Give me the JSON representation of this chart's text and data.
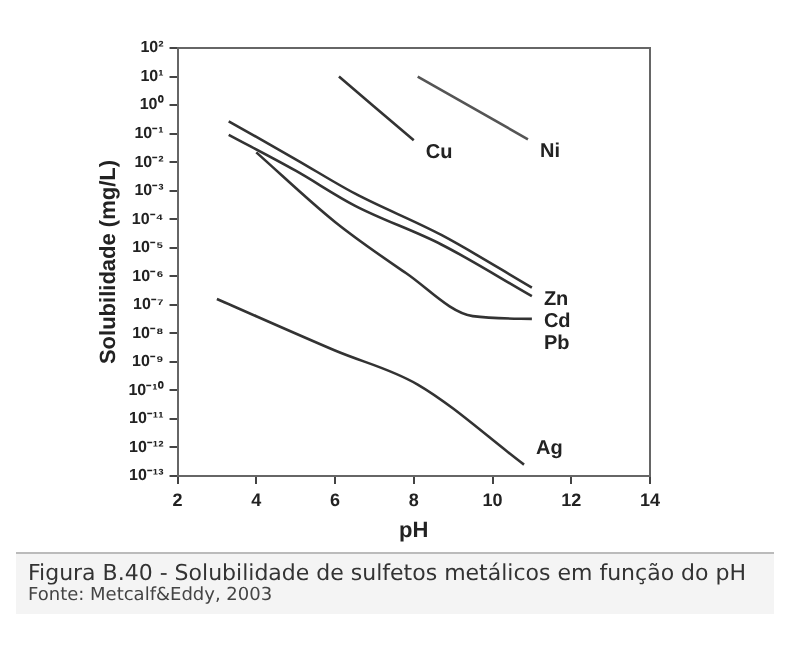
{
  "chart_data": {
    "type": "line",
    "title": "Figura B.40 - Solubilidade de sulfetos metálicos em função do pH",
    "xlabel": "pH",
    "ylabel": "Solubilidade (mg/L)",
    "annotations": [
      "Fonte: Metcalf&Eddy, 2003"
    ],
    "series": [
      {
        "name": "Cu",
        "color": "#333333",
        "x": [
          6.1,
          8.0
        ],
        "values": [
          10,
          0.058
        ]
      },
      {
        "name": "Ni",
        "color": "#555555",
        "x": [
          8.1,
          10.9
        ],
        "values": [
          10,
          0.063
        ]
      },
      {
        "name": "Zn",
        "color": "#333333",
        "x": [
          3.3,
          5,
          6.5,
          8.7,
          11
        ],
        "values": [
          0.27,
          0.0126,
          0.0008,
          2.8e-05,
          4e-07
        ]
      },
      {
        "name": "Cd",
        "color": "#333333",
        "x": [
          3.3,
          5,
          6.5,
          8.7,
          11
        ],
        "values": [
          0.09,
          0.005,
          0.0003,
          1.3e-05,
          2e-07
        ]
      },
      {
        "name": "Pb",
        "color": "#333333",
        "x": [
          4,
          6,
          7.8,
          9.5,
          11
        ],
        "values": [
          0.022,
          8e-05,
          1.3e-06,
          4e-08,
          3.2e-08
        ]
      },
      {
        "name": "Ag",
        "color": "#333333",
        "x": [
          3,
          6,
          8.1,
          10.8
        ],
        "values": [
          1.6e-07,
          2.5e-09,
          1.6e-10,
          2.5e-13
        ]
      }
    ],
    "log": "y",
    "xlim": [
      2,
      14
    ],
    "xticks": [
      2,
      4,
      6,
      8,
      10,
      12,
      14
    ],
    "ylim": [
      1e-13,
      100
    ],
    "yticks": [
      {
        "value": 1e-13,
        "label": "10⁻¹³"
      },
      {
        "value": 1e-12,
        "label": "10⁻¹²"
      },
      {
        "value": 1e-11,
        "label": "10⁻¹¹"
      },
      {
        "value": 1e-10,
        "label": "10⁻¹⁰"
      },
      {
        "value": 1e-09,
        "label": "10⁻⁹"
      },
      {
        "value": 1e-08,
        "label": "10⁻⁸"
      },
      {
        "value": 1e-07,
        "label": "10⁻⁷"
      },
      {
        "value": 1e-06,
        "label": "10⁻⁶"
      },
      {
        "value": 1e-05,
        "label": "10⁻⁵"
      },
      {
        "value": 0.0001,
        "label": "10⁻⁴"
      },
      {
        "value": 0.001,
        "label": "10⁻³"
      },
      {
        "value": 0.01,
        "label": "10⁻²"
      },
      {
        "value": 0.1,
        "label": "10⁻¹"
      },
      {
        "value": 1,
        "label": "10⁰"
      },
      {
        "value": 10,
        "label": "10¹"
      },
      {
        "value": 100,
        "label": "10²"
      }
    ],
    "grid": false,
    "legend": false,
    "marker": "none",
    "line_style": "solid"
  }
}
